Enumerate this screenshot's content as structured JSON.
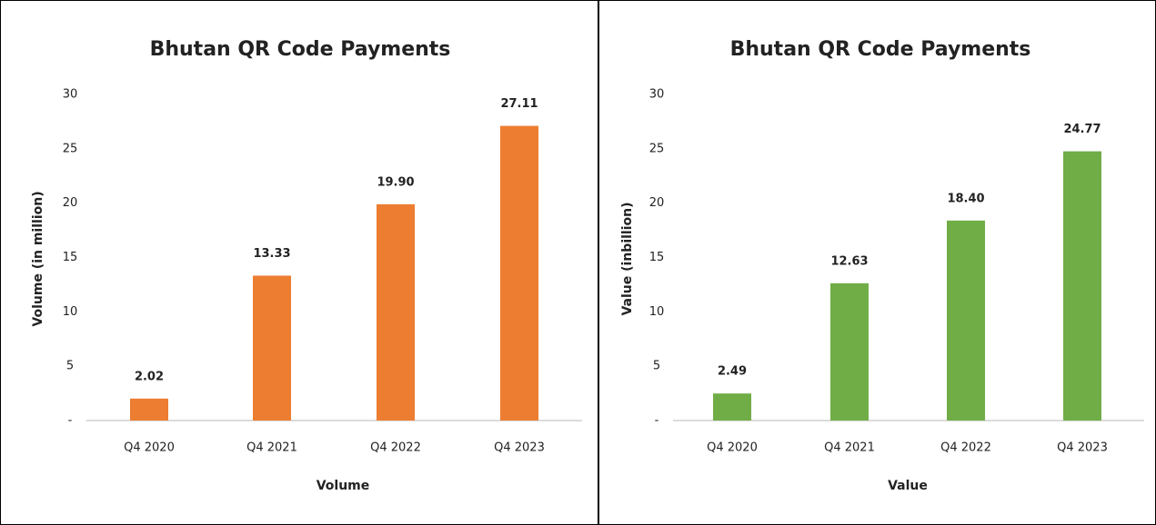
{
  "chart_data": [
    {
      "type": "bar",
      "title": "Bhutan QR Code Payments",
      "y_label": "Volume (in million)",
      "x_label": "Volume",
      "categories": [
        "Q4 2020",
        "Q4 2021",
        "Q4 2022",
        "Q4 2023"
      ],
      "values": [
        2.02,
        13.33,
        19.9,
        27.11
      ],
      "value_labels": [
        "2.02",
        "13.33",
        "19.90",
        "27.11"
      ],
      "color": "#ed7d31",
      "ylim": [
        0,
        30
      ],
      "yticks": [
        {
          "value": 0,
          "label": "-"
        },
        5,
        10,
        15,
        20,
        25,
        30
      ],
      "grid": false
    },
    {
      "type": "bar",
      "title": "Bhutan QR Code Payments",
      "y_label": "Value (inbillion)",
      "x_label": "Value",
      "categories": [
        "Q4 2020",
        "Q4 2021",
        "Q4 2022",
        "Q4 2023"
      ],
      "values": [
        2.49,
        12.63,
        18.4,
        24.77
      ],
      "value_labels": [
        "2.49",
        "12.63",
        "18.40",
        "24.77"
      ],
      "color": "#70ad47",
      "ylim": [
        0,
        30
      ],
      "yticks": [
        {
          "value": 0,
          "label": "-"
        },
        5,
        10,
        15,
        20,
        25,
        30
      ],
      "grid": false
    }
  ]
}
